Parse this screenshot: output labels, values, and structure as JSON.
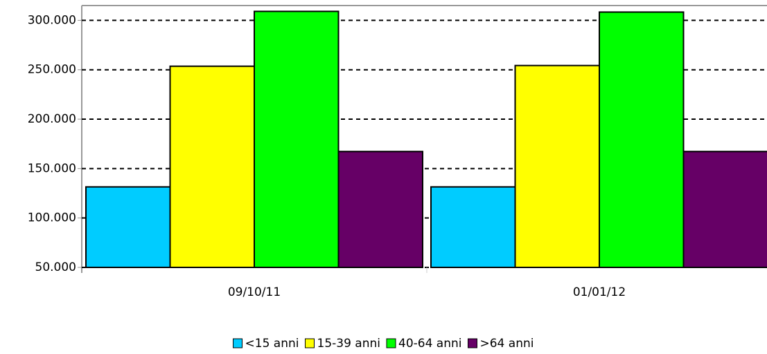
{
  "chart_data": {
    "type": "bar",
    "categories": [
      "09/10/11",
      "01/01/12"
    ],
    "series": [
      {
        "name": "<15 anni",
        "color": "#00ccff",
        "values": [
          131500,
          131500
        ]
      },
      {
        "name": "15-39 anni",
        "color": "#ffff00",
        "values": [
          253600,
          254300
        ]
      },
      {
        "name": "40-64 anni",
        "color": "#00ff00",
        "values": [
          309100,
          308400
        ]
      },
      {
        "name": ">64 anni",
        "color": "#660066",
        "values": [
          167300,
          167300
        ]
      }
    ],
    "ylim": [
      50000,
      315000
    ],
    "yticks": [
      {
        "value": 50000,
        "label": "50.000"
      },
      {
        "value": 100000,
        "label": "100.000"
      },
      {
        "value": 150000,
        "label": "150.000"
      },
      {
        "value": 200000,
        "label": "200.000"
      },
      {
        "value": 250000,
        "label": "250.000"
      },
      {
        "value": 300000,
        "label": "300.000"
      }
    ],
    "grid": true,
    "legend": "bottom"
  }
}
